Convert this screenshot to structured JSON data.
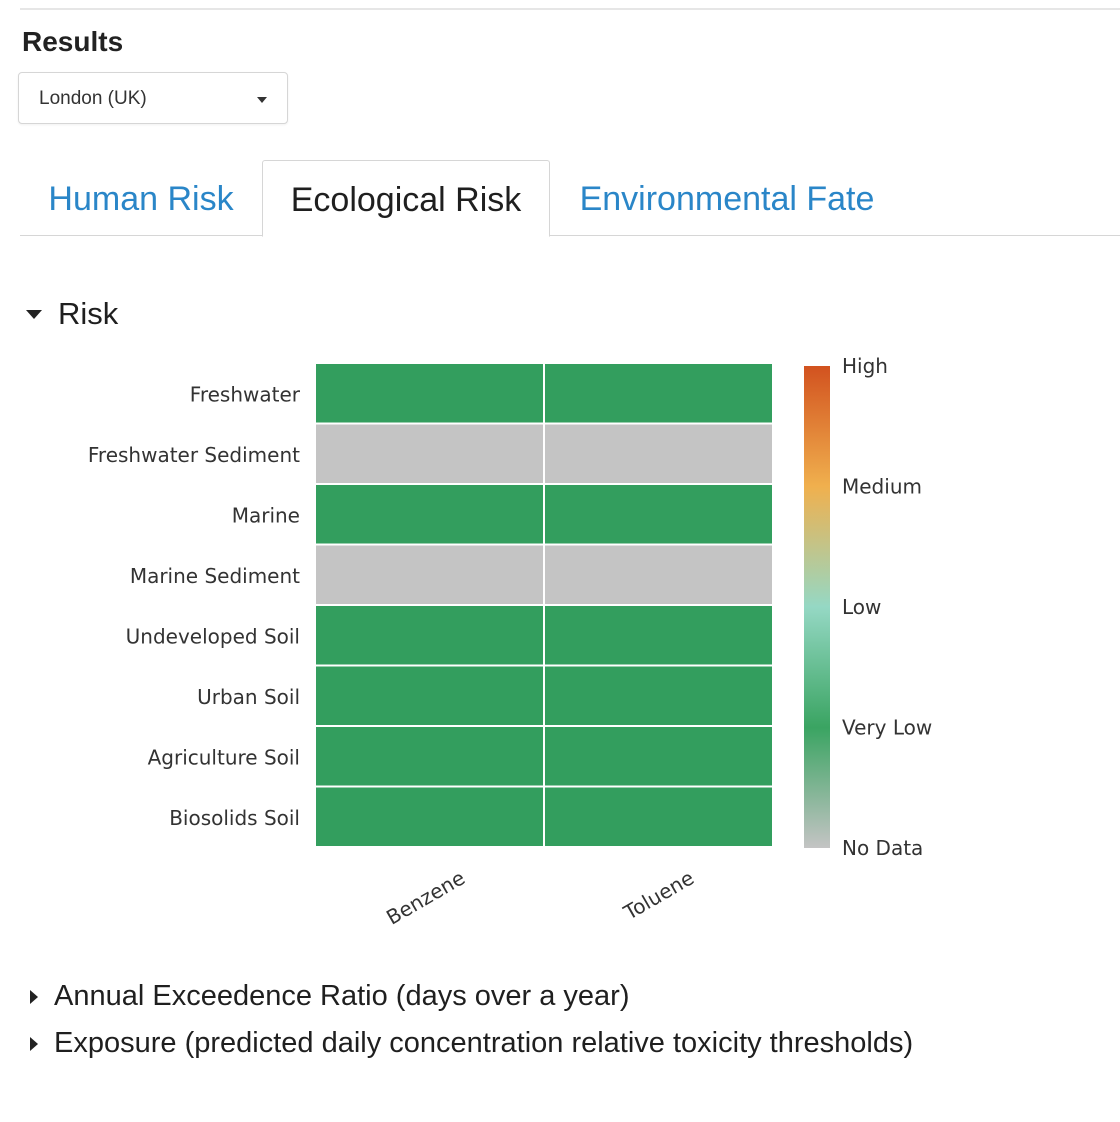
{
  "results": {
    "title": "Results",
    "location": "London (UK)"
  },
  "tabs": [
    {
      "label": "Human Risk",
      "active": false
    },
    {
      "label": "Ecological Risk",
      "active": true
    },
    {
      "label": "Environmental Fate",
      "active": false
    }
  ],
  "risk_section": {
    "label": "Risk",
    "expanded": true
  },
  "collapsed_sections": [
    {
      "label": "Annual Exceedence Ratio (days over a year)",
      "expanded": false
    },
    {
      "label": "Exposure (predicted daily concentration relative toxicity thresholds)",
      "expanded": false
    }
  ],
  "colors": {
    "very_low": "#339e5e",
    "no_data": "#c4c4c4",
    "tab_link": "#2a86c8"
  },
  "icons": [
    "chevron-down-icon",
    "triangle-down-icon",
    "triangle-right-icon"
  ],
  "chart_data": {
    "type": "heatmap",
    "rows": [
      "Freshwater",
      "Freshwater Sediment",
      "Marine",
      "Marine Sediment",
      "Undeveloped Soil",
      "Urban Soil",
      "Agriculture Soil",
      "Biosolids Soil"
    ],
    "columns": [
      "Benzene",
      "Toluene"
    ],
    "values": [
      [
        "Very Low",
        "Very Low"
      ],
      [
        "No Data",
        "No Data"
      ],
      [
        "Very Low",
        "Very Low"
      ],
      [
        "No Data",
        "No Data"
      ],
      [
        "Very Low",
        "Very Low"
      ],
      [
        "Very Low",
        "Very Low"
      ],
      [
        "Very Low",
        "Very Low"
      ],
      [
        "Very Low",
        "Very Low"
      ]
    ],
    "colorbar": {
      "labels": [
        "High",
        "Medium",
        "Low",
        "Very Low",
        "No Data"
      ],
      "colors": [
        "#d2521f",
        "#f0b04e",
        "#95d8c4",
        "#3aa462",
        "#c4c4c4"
      ]
    },
    "legend": "right"
  }
}
